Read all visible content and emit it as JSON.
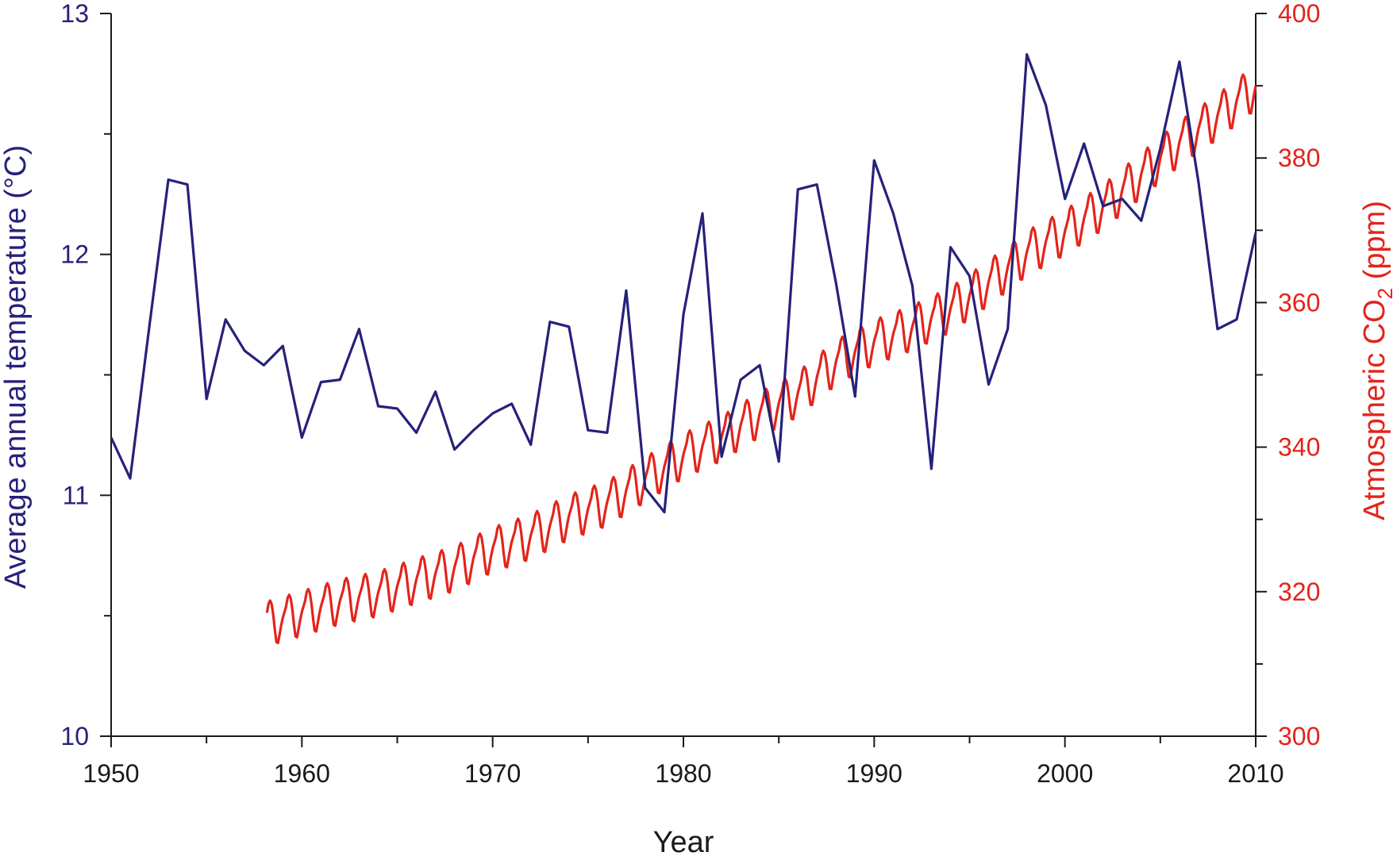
{
  "chart_data": {
    "type": "line",
    "xlabel": "Year",
    "ylabel_left": "Average annual temperature (°C)",
    "ylabel_right": {
      "prefix": "Atmospheric CO",
      "sub": "2",
      "suffix": " (ppm)"
    },
    "xlim": [
      1950,
      2010
    ],
    "ylim_left": [
      10,
      13
    ],
    "ylim_right": [
      300,
      400
    ],
    "grid": false,
    "xticks": [
      1950,
      1960,
      1970,
      1980,
      1990,
      2000,
      2010
    ],
    "yticks_left": [
      10,
      11,
      12,
      13
    ],
    "yticks_right": [
      300,
      320,
      340,
      360,
      380,
      400
    ],
    "colors": {
      "temperature": "#26217a",
      "co2": "#e3241b",
      "axis": "#1a1a1a"
    },
    "temperature": {
      "x": [
        1950,
        1951,
        1952,
        1953,
        1954,
        1955,
        1956,
        1957,
        1958,
        1959,
        1960,
        1961,
        1962,
        1963,
        1964,
        1965,
        1966,
        1967,
        1968,
        1969,
        1970,
        1971,
        1972,
        1973,
        1974,
        1975,
        1976,
        1977,
        1978,
        1979,
        1980,
        1981,
        1982,
        1983,
        1984,
        1985,
        1986,
        1987,
        1988,
        1989,
        1990,
        1991,
        1992,
        1993,
        1994,
        1995,
        1996,
        1997,
        1998,
        1999,
        2000,
        2001,
        2002,
        2003,
        2004,
        2005,
        2006,
        2007,
        2008,
        2009,
        2010
      ],
      "y": [
        11.24,
        11.07,
        11.7,
        12.31,
        12.29,
        11.4,
        11.73,
        11.6,
        11.54,
        11.62,
        11.24,
        11.47,
        11.48,
        11.69,
        11.37,
        11.36,
        11.26,
        11.43,
        11.19,
        11.27,
        11.34,
        11.38,
        11.21,
        11.72,
        11.7,
        11.27,
        11.26,
        11.85,
        11.03,
        10.93,
        11.75,
        12.17,
        11.16,
        11.48,
        11.54,
        11.14,
        12.27,
        12.29,
        11.88,
        11.41,
        12.39,
        12.17,
        11.87,
        11.11,
        12.03,
        11.91,
        11.46,
        11.69,
        12.83,
        12.62,
        12.23,
        12.46,
        12.2,
        12.23,
        12.14,
        12.44,
        12.8,
        12.3,
        11.69,
        11.73,
        12.09
      ]
    },
    "co2": {
      "start_year": 1958.2,
      "annual_mean": {
        "x": [
          1958,
          1960,
          1962,
          1964,
          1966,
          1968,
          1970,
          1972,
          1974,
          1976,
          1978,
          1980,
          1982,
          1984,
          1986,
          1988,
          1990,
          1992,
          1994,
          1996,
          1998,
          2000,
          2002,
          2004,
          2006,
          2008,
          2010
        ],
        "y": [
          315.3,
          316.9,
          318.5,
          319.6,
          321.4,
          323.1,
          325.7,
          327.5,
          330.2,
          332.1,
          335.4,
          338.7,
          341.1,
          344.4,
          347.2,
          351.6,
          354.4,
          356.4,
          358.9,
          362.6,
          366.7,
          369.6,
          373.1,
          377.5,
          381.9,
          385.6,
          389.7
        ]
      },
      "seasonal_amplitude": 3.2
    }
  }
}
